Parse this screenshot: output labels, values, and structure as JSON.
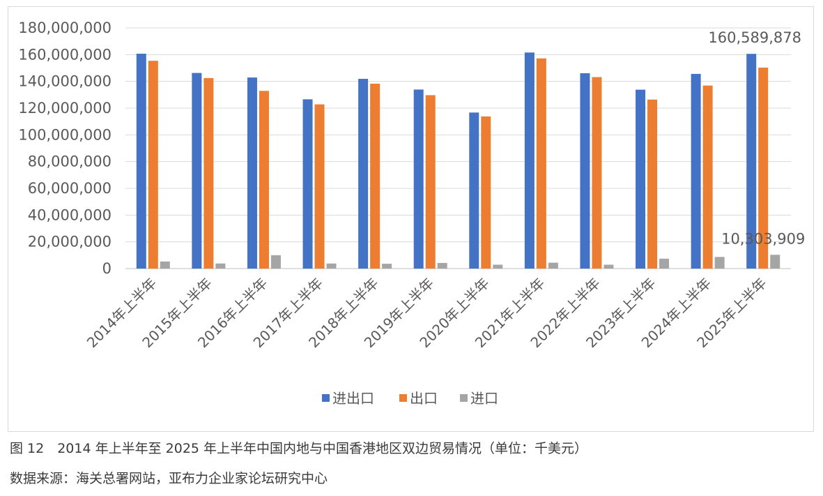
{
  "chart_data": {
    "type": "bar",
    "categories": [
      "2014年上半年",
      "2015年上半年",
      "2016年上半年",
      "2017年上半年",
      "2018年上半年",
      "2019年上半年",
      "2020年上半年",
      "2021年上半年",
      "2022年上半年",
      "2023年上半年",
      "2024年上半年",
      "2025年上半年"
    ],
    "series": [
      {
        "name": "进出口",
        "color": "#4472c4",
        "values": [
          160700000,
          146300000,
          142900000,
          126600000,
          141900000,
          133900000,
          116700000,
          161600000,
          146100000,
          133800000,
          145600000,
          160589878
        ]
      },
      {
        "name": "出口",
        "color": "#ed7d31",
        "values": [
          155400000,
          142500000,
          132900000,
          122800000,
          138300000,
          129700000,
          113800000,
          157200000,
          143200000,
          126400000,
          136900000,
          150300000
        ]
      },
      {
        "name": "进口",
        "color": "#a5a5a5",
        "values": [
          5300000,
          3800000,
          10000000,
          3800000,
          3600000,
          4200000,
          2900000,
          4400000,
          2900000,
          7400000,
          8700000,
          10303909
        ]
      }
    ],
    "ylim": [
      0,
      180000000
    ],
    "y_ticks": [
      "0",
      "20,000,000",
      "40,000,000",
      "60,000,000",
      "80,000,000",
      "100,000,000",
      "120,000,000",
      "140,000,000",
      "160,000,000",
      "180,000,000"
    ],
    "y_tick_values": [
      0,
      20000000,
      40000000,
      60000000,
      80000000,
      100000000,
      120000000,
      140000000,
      160000000,
      180000000
    ],
    "data_labels": [
      {
        "series": 0,
        "index": 11,
        "text": "160,589,878"
      },
      {
        "series": 2,
        "index": 11,
        "text": "10,303,909"
      }
    ],
    "grid": true,
    "legend_position": "bottom"
  },
  "captions": {
    "figure": "图 12　2014 年上半年至 2025 年上半年中国内地与中国香港地区双边贸易情况（单位：千美元）",
    "source": "数据来源：海关总署网站，亚布力企业家论坛研究中心"
  }
}
